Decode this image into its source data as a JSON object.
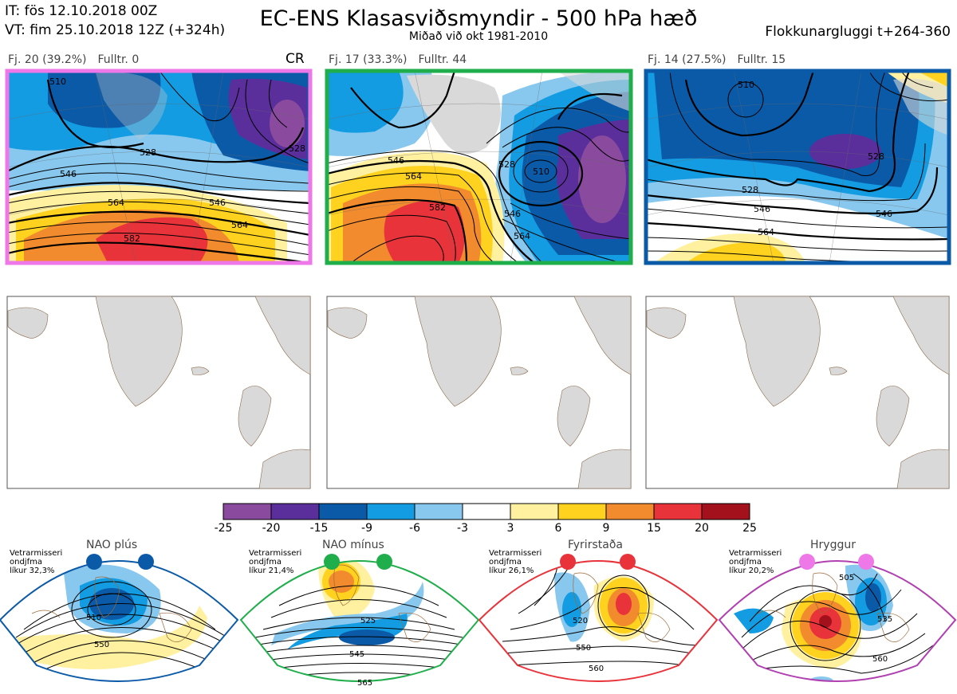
{
  "header": {
    "it": "IT: fös 12.10.2018 00Z",
    "vt": "VT: fim 25.10.2018 12Z  (+324h)",
    "title": "EC-ENS Klasasviðsmyndir - 500 hPa hæð",
    "subtitle": "Miðað við okt 1981-2010",
    "window": "Flokkunargluggi t+264-360"
  },
  "clusters": [
    {
      "label": "Fj. 20 (39.2%)",
      "fulltr": "Fulltr. 0",
      "tag": "CR",
      "border_color": "#ee78e8",
      "contour_labels": [
        "528",
        "546",
        "564",
        "582",
        "546",
        "564",
        "528",
        "510"
      ]
    },
    {
      "label": "Fj. 17 (33.3%)",
      "fulltr": "Fulltr. 44",
      "tag": "",
      "border_color": "#1fae4b",
      "contour_labels": [
        "546",
        "564",
        "582",
        "528",
        "510",
        "546",
        "564"
      ]
    },
    {
      "label": "Fj. 14 (27.5%)",
      "fulltr": "Fulltr. 15",
      "tag": "",
      "border_color": "#0b5aa8",
      "contour_labels": [
        "510",
        "528",
        "528",
        "546",
        "546",
        "564"
      ]
    }
  ],
  "colorbar": {
    "ticks": [
      "-25",
      "-20",
      "-15",
      "-9",
      "-6",
      "-3",
      "3",
      "6",
      "9",
      "15",
      "20",
      "25"
    ],
    "colors": [
      "#8a4a9e",
      "#5a2f9c",
      "#0b5aa8",
      "#139ce2",
      "#88c8ee",
      "#ffffff",
      "#fff1a0",
      "#ffd21f",
      "#f28a2e",
      "#e8333b",
      "#a3111c"
    ]
  },
  "regimes": [
    {
      "title": "NAO plús",
      "info": [
        "Vetrarmisseri",
        "ondjfma",
        "líkur 32,3%"
      ],
      "color": "#0b5aa8",
      "contour_labels": [
        "510",
        "550"
      ]
    },
    {
      "title": "NAO mínus",
      "info": [
        "Vetrarmisseri",
        "ondjfma",
        "líkur 21,4%"
      ],
      "color": "#1fae4b",
      "contour_labels": [
        "525",
        "545",
        "565"
      ]
    },
    {
      "title": "Fyrirstaða",
      "info": [
        "Vetrarmisseri",
        "ondjfma",
        "líkur 26,1%"
      ],
      "color": "#e8333b",
      "contour_labels": [
        "520",
        "550",
        "560"
      ]
    },
    {
      "title": "Hryggur",
      "info": [
        "Vetrarmisseri",
        "ondjfma",
        "líkur 20,2%"
      ],
      "color": "#b040b0",
      "contour_labels": [
        "505",
        "535",
        "560"
      ]
    }
  ]
}
